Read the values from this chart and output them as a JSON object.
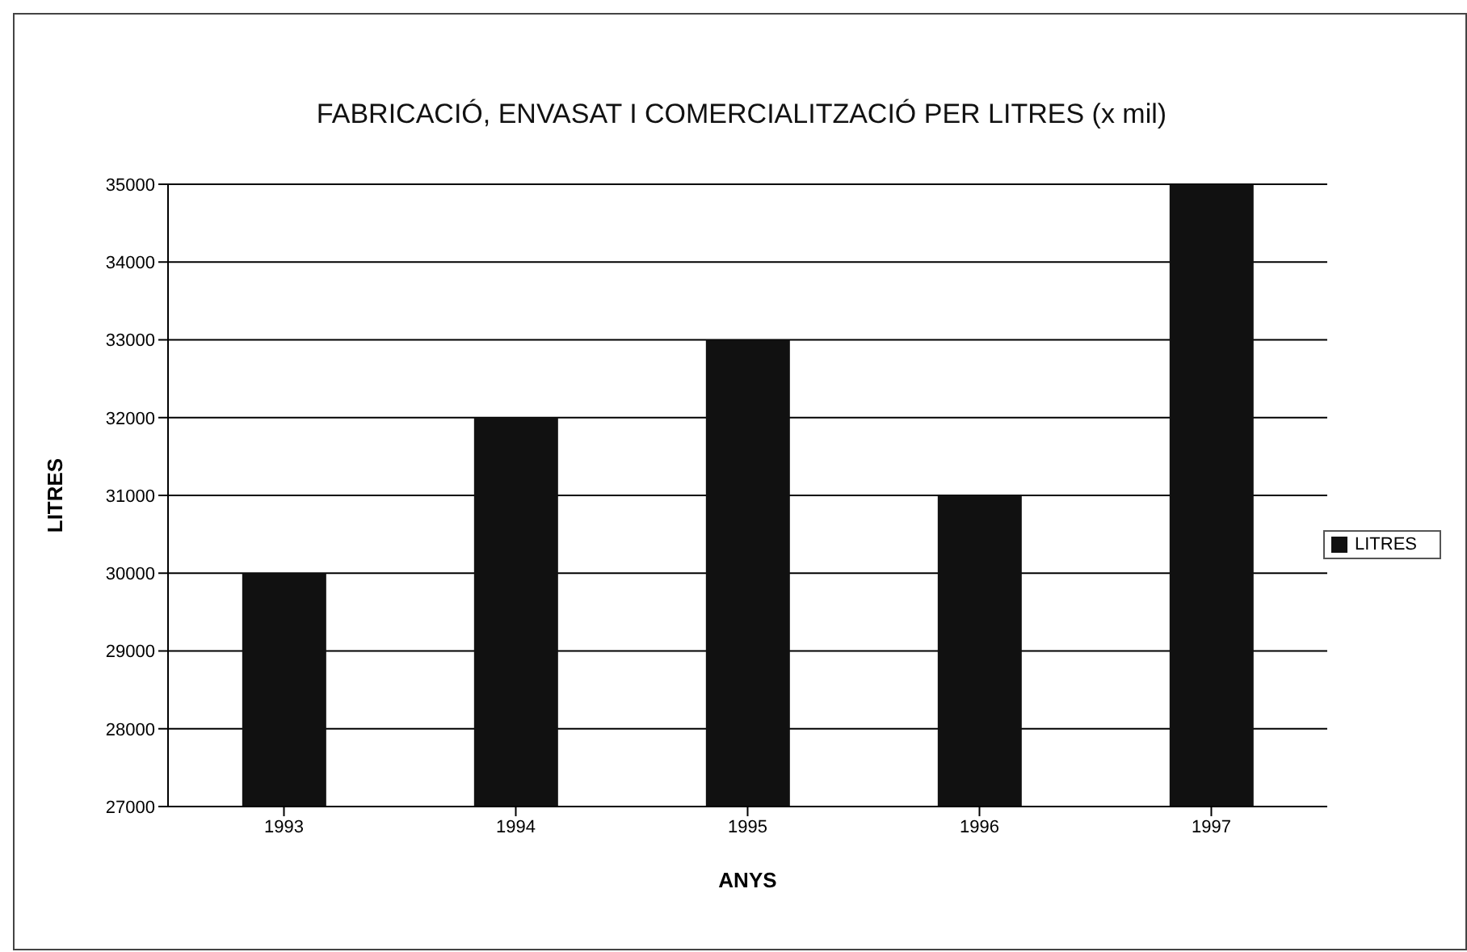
{
  "chart_data": {
    "type": "bar",
    "title": "FABRICACIÓ, ENVASAT I COMERCIALITZACIÓ PER LITRES (x mil)",
    "xlabel": "ANYS",
    "ylabel": "LITRES",
    "categories": [
      "1993",
      "1994",
      "1995",
      "1996",
      "1997"
    ],
    "series": [
      {
        "name": "LITRES",
        "color": "#111111",
        "values": [
          30000,
          32000,
          33000,
          31000,
          35000
        ]
      }
    ],
    "ylim": [
      27000,
      35000
    ],
    "yticks": [
      27000,
      28000,
      29000,
      30000,
      31000,
      32000,
      33000,
      34000,
      35000
    ],
    "grid": "y",
    "legend": "right"
  }
}
